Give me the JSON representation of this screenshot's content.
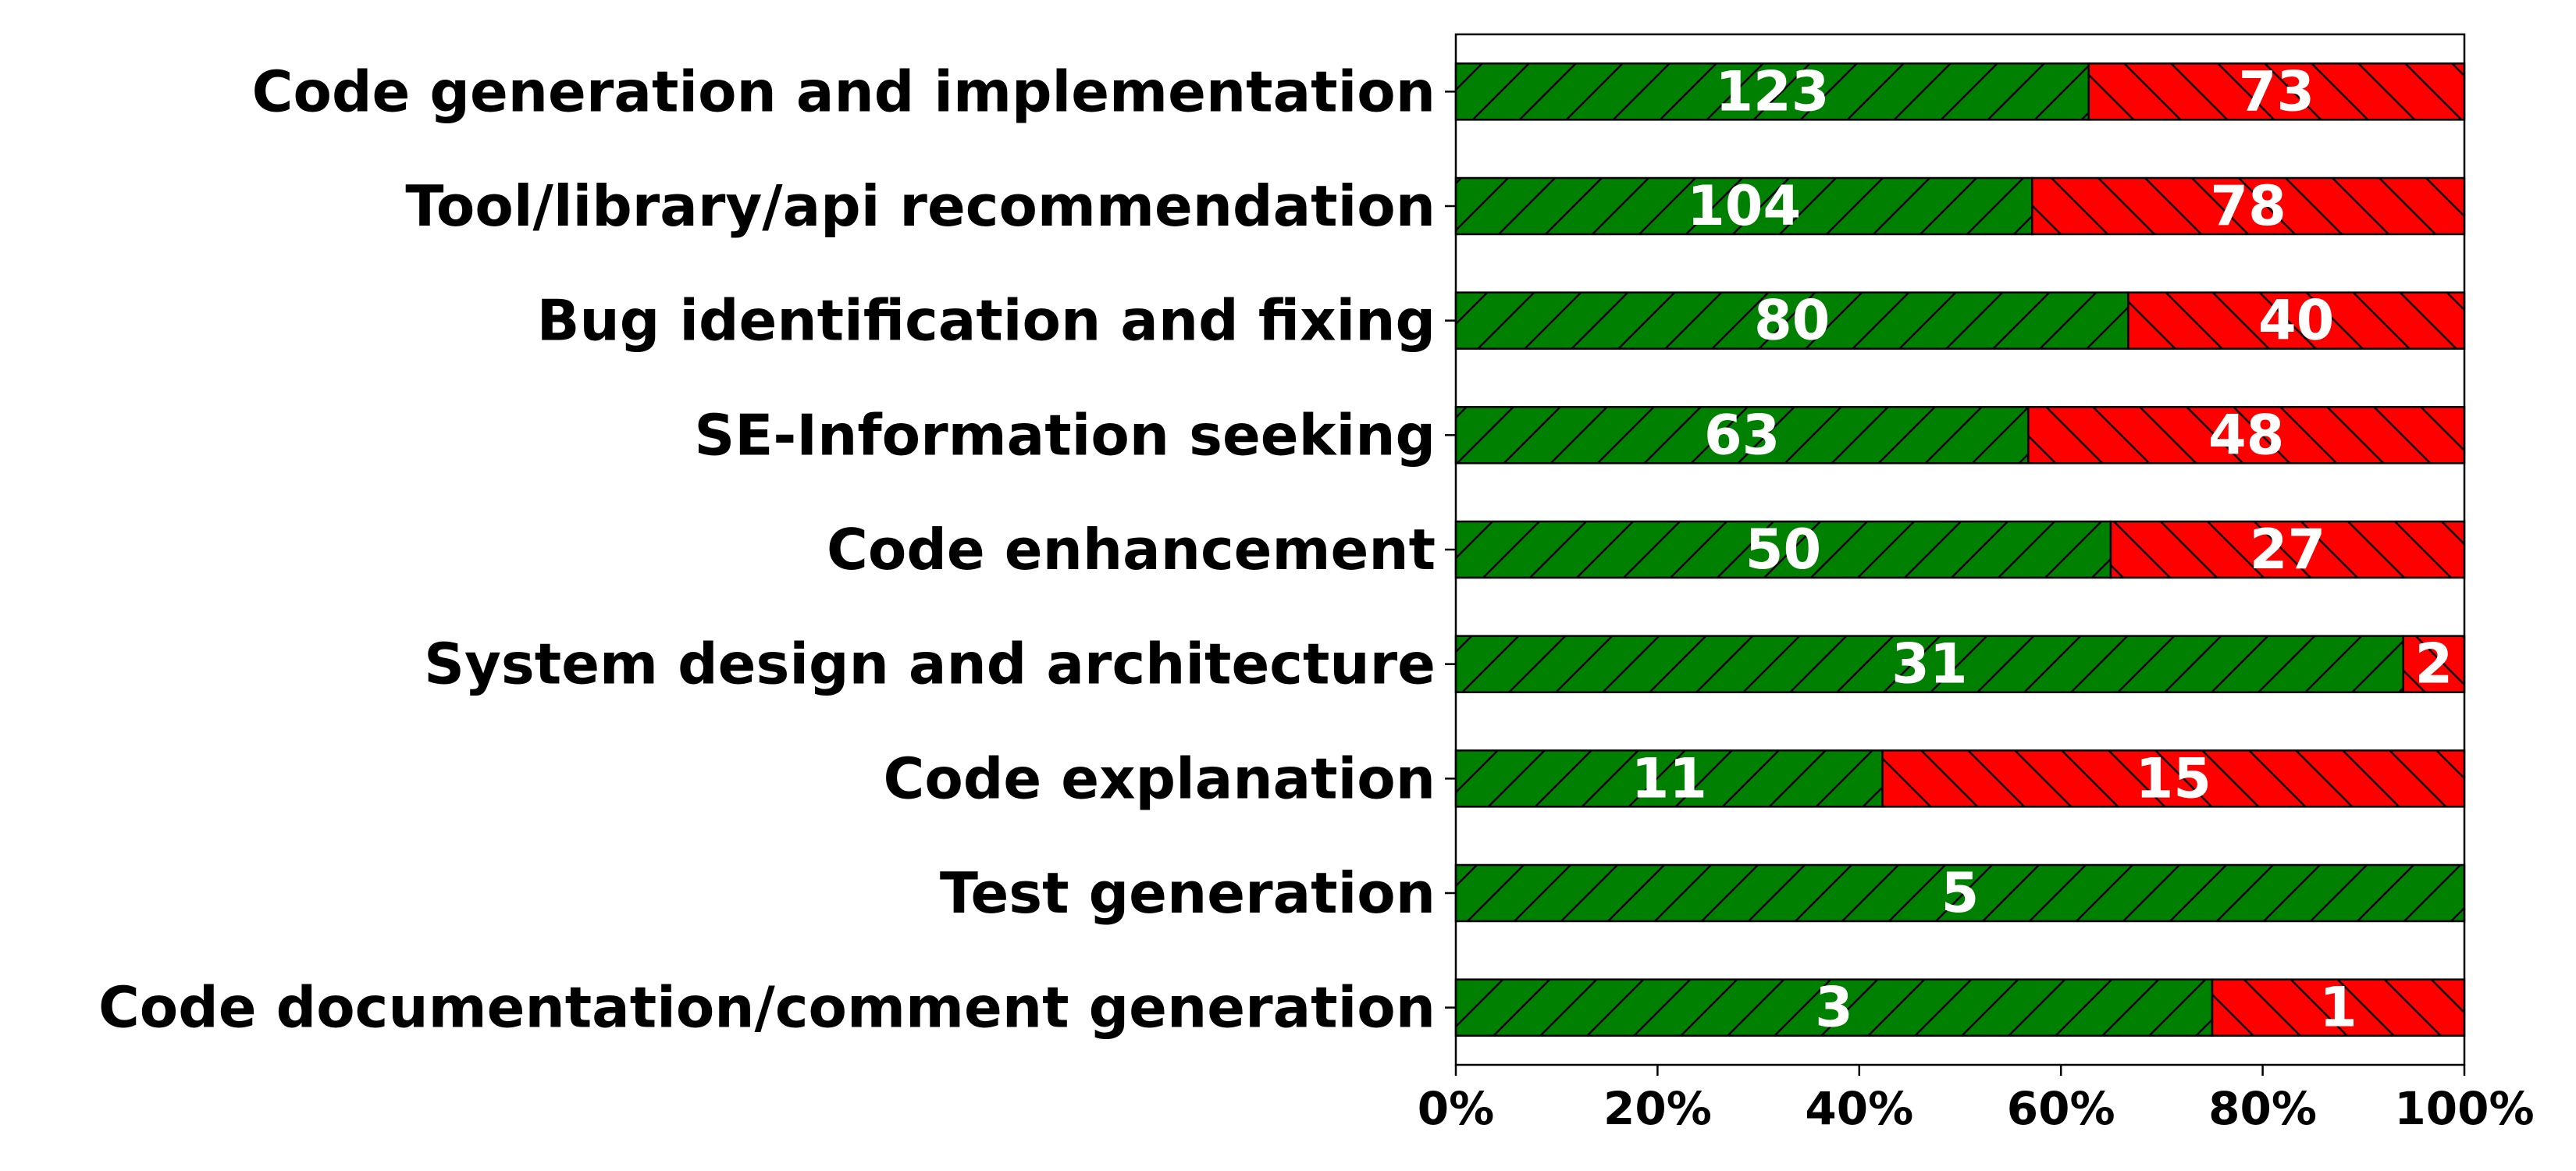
{
  "chart_data": {
    "type": "bar",
    "orientation": "horizontal",
    "stacking": "percent",
    "categories": [
      "Code generation and implementation",
      "Tool/library/api recommendation",
      "Bug identification and fixing",
      "SE-Information seeking",
      "Code enhancement",
      "System design and architecture",
      "Code explanation",
      "Test generation",
      "Code documentation/comment generation"
    ],
    "series": [
      {
        "color": "#008000",
        "hatch": "/",
        "values": [
          123,
          104,
          80,
          63,
          50,
          31,
          11,
          5,
          3
        ]
      },
      {
        "color": "#ff0000",
        "hatch": "\\",
        "values": [
          73,
          78,
          40,
          48,
          27,
          2,
          15,
          0,
          1
        ]
      }
    ],
    "xlim": [
      0,
      100
    ],
    "xticks": [
      {
        "value": 0,
        "label": "0%"
      },
      {
        "value": 20,
        "label": "20%"
      },
      {
        "value": 40,
        "label": "40%"
      },
      {
        "value": 60,
        "label": "60%"
      },
      {
        "value": 80,
        "label": "80%"
      },
      {
        "value": 100,
        "label": "100%"
      }
    ],
    "grid": false
  }
}
